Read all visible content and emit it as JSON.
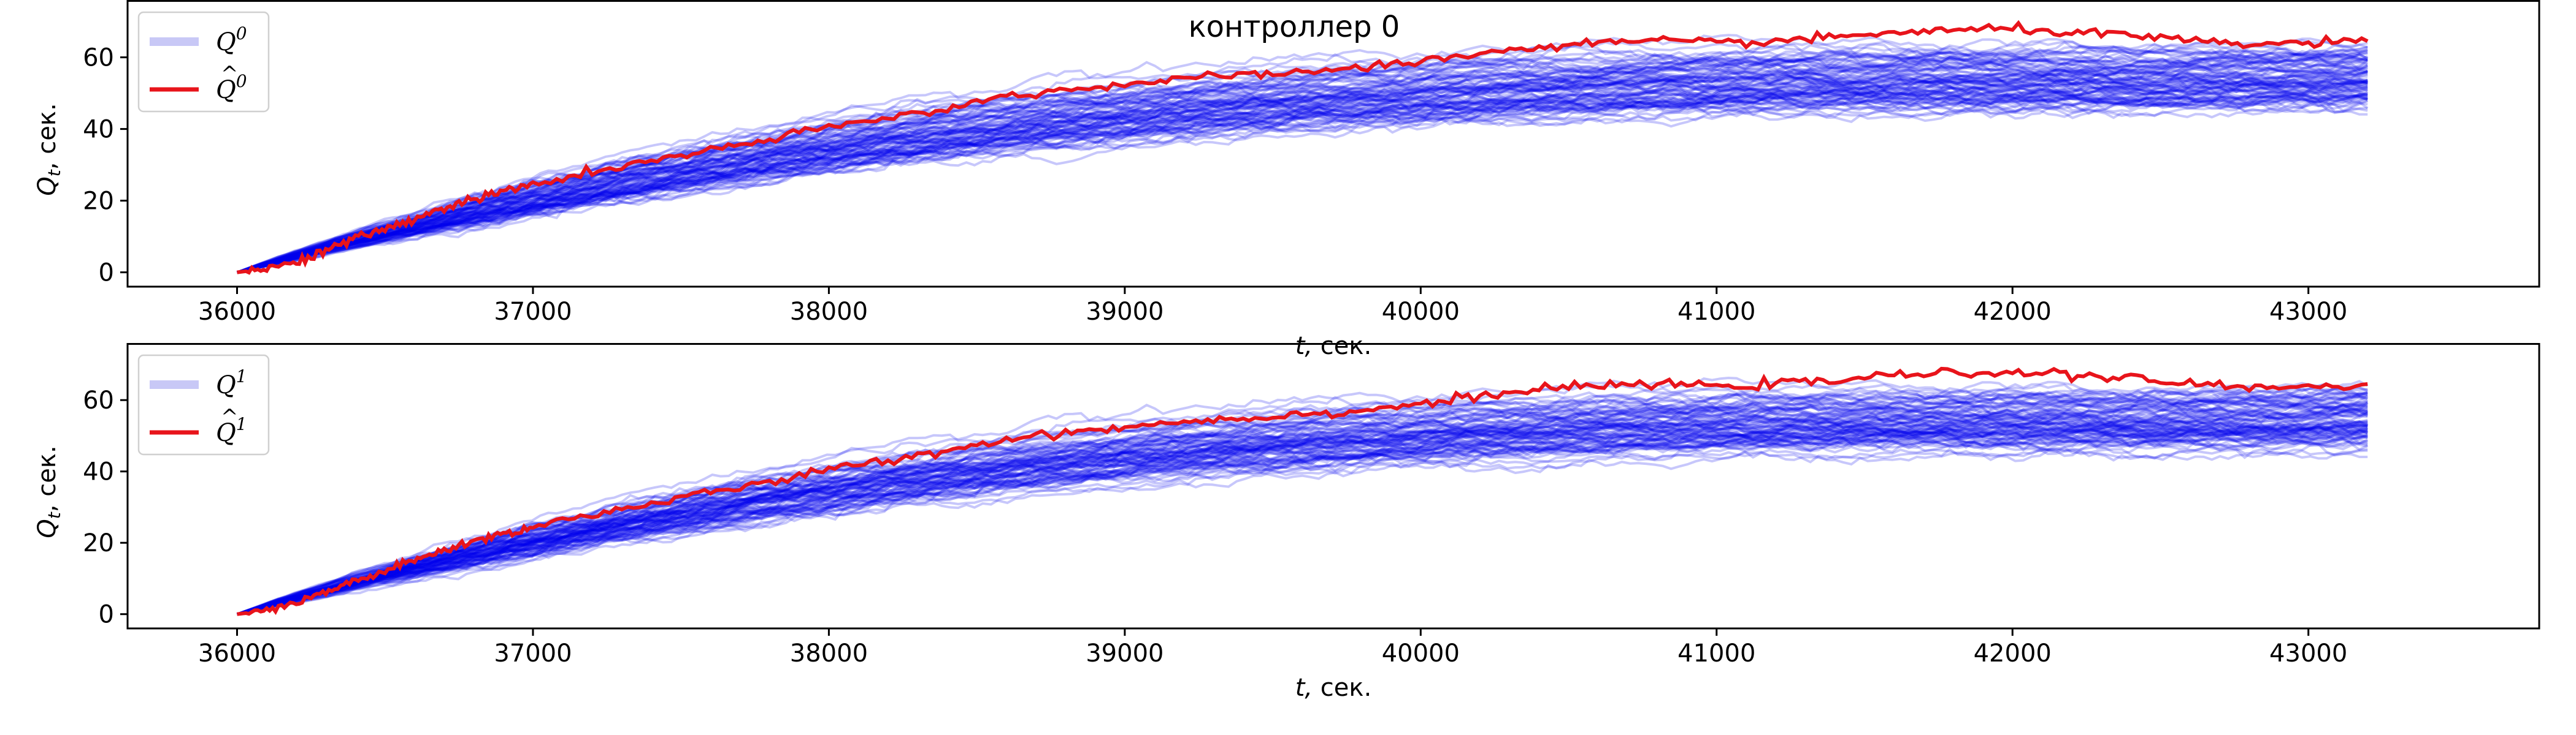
{
  "chart_data": [
    {
      "type": "line",
      "title": "контроллер 0",
      "xlabel_var": "t,",
      "xlabel_unit": "сек.",
      "ylabel_var": "Q",
      "ylabel_sub": "t",
      "ylabel_unit": ", сек.",
      "xlim": [
        35630,
        43780
      ],
      "ylim": [
        -4,
        76
      ],
      "xticks": [
        36000,
        37000,
        38000,
        39000,
        40000,
        41000,
        42000,
        43000
      ],
      "yticks": [
        0,
        20,
        40,
        60
      ],
      "legend_position": "upper-left",
      "legend": [
        {
          "label_base": "Q",
          "label_sup": "0",
          "hat": false,
          "color": "#c8c8f6"
        },
        {
          "label_base": "Q",
          "label_sup": "0",
          "hat": true,
          "color": "#e8141b"
        }
      ],
      "ensemble": {
        "name": "Q0",
        "color": "#0000ee",
        "opacity": 0.22,
        "count": 90,
        "x_start": 36000,
        "x_end": 43200,
        "final_range": [
          49,
          66
        ],
        "peak_range": [
          55,
          72
        ]
      },
      "series": [
        {
          "name": "Q̂0",
          "color": "#e8141b",
          "x": [
            36000,
            36100,
            36200,
            36300,
            36400,
            36500,
            36600,
            36700,
            36800,
            36900,
            37000,
            37200,
            37400,
            37600,
            37800,
            38000,
            38200,
            38400,
            38600,
            38800,
            39000,
            39200,
            39400,
            39600,
            39800,
            40000,
            40200,
            40400,
            40600,
            40800,
            41000,
            41200,
            41400,
            41600,
            41800,
            42000,
            42200,
            42400,
            42600,
            42800,
            43000,
            43200
          ],
          "y": [
            0,
            1,
            3,
            6,
            9.5,
            12,
            15,
            18,
            20.5,
            22.5,
            24.5,
            28,
            31,
            34,
            37,
            40.5,
            43,
            46,
            49,
            51,
            52.5,
            54,
            55,
            56,
            57,
            59,
            61,
            63,
            64,
            64.5,
            64,
            64.5,
            65.5,
            67,
            67.5,
            68,
            67,
            66,
            64.5,
            63.5,
            64,
            64.5
          ]
        }
      ]
    },
    {
      "type": "line",
      "title": "",
      "xlabel_var": "t,",
      "xlabel_unit": "сек.",
      "ylabel_var": "Q",
      "ylabel_sub": "t",
      "ylabel_unit": ", сек.",
      "xlim": [
        35630,
        43780
      ],
      "ylim": [
        -4,
        76
      ],
      "xticks": [
        36000,
        37000,
        38000,
        39000,
        40000,
        41000,
        42000,
        43000
      ],
      "yticks": [
        0,
        20,
        40,
        60
      ],
      "legend_position": "upper-left",
      "legend": [
        {
          "label_base": "Q",
          "label_sup": "1",
          "hat": false,
          "color": "#c8c8f6"
        },
        {
          "label_base": "Q",
          "label_sup": "1",
          "hat": true,
          "color": "#e8141b"
        }
      ],
      "ensemble": {
        "name": "Q1",
        "color": "#0000ee",
        "opacity": 0.22,
        "count": 90,
        "x_start": 36000,
        "x_end": 43200,
        "final_range": [
          49,
          66
        ],
        "peak_range": [
          55,
          72
        ]
      },
      "series": [
        {
          "name": "Q̂1",
          "color": "#e8141b",
          "x": [
            36000,
            36100,
            36200,
            36300,
            36400,
            36500,
            36600,
            36700,
            36800,
            36900,
            37000,
            37200,
            37400,
            37600,
            37800,
            38000,
            38200,
            38400,
            38600,
            38800,
            39000,
            39200,
            39400,
            39600,
            39800,
            40000,
            40200,
            40400,
            40600,
            40800,
            41000,
            41200,
            41400,
            41600,
            41800,
            42000,
            42200,
            42400,
            42600,
            42800,
            43000,
            43200
          ],
          "y": [
            0,
            1,
            3,
            6,
            9.5,
            12,
            15,
            18,
            20.5,
            22.5,
            24.5,
            28,
            31,
            34,
            37,
            40.5,
            43,
            46,
            49,
            51,
            52.5,
            54,
            55,
            56,
            57,
            59,
            61,
            63,
            64,
            64.5,
            64,
            64.5,
            65.5,
            67,
            67.5,
            68,
            67,
            66,
            64.5,
            63.5,
            64,
            64.5
          ]
        }
      ]
    }
  ]
}
